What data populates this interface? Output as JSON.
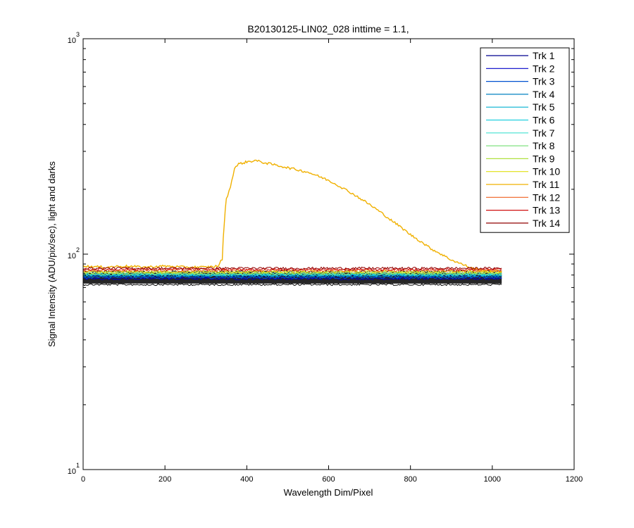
{
  "chart_data": {
    "type": "line",
    "title": "B20130125-LIN02_028 inttime = 1.1,",
    "xlabel": "Wavelength Dim/Pixel",
    "ylabel": "Signal Intensity (ADU/pix/sec), light and darks",
    "xlim": [
      0,
      1200
    ],
    "ylim": [
      10,
      1000
    ],
    "yscale": "log",
    "x_ticks": [
      0,
      200,
      400,
      600,
      800,
      1000,
      1200
    ],
    "y_ticks": [
      {
        "base": "10",
        "exp": "1",
        "value": 10
      },
      {
        "base": "10",
        "exp": "2",
        "value": 100
      },
      {
        "base": "10",
        "exp": "3",
        "value": 1000
      }
    ],
    "grid": false,
    "legend_position": "top-right",
    "dark_band": {
      "x_range": [
        0,
        1023
      ],
      "y_min": 73,
      "y_max": 82,
      "color": "#000000"
    },
    "series": [
      {
        "name": "Trk 1",
        "color": "#00008F",
        "x": [
          0,
          1023
        ],
        "y": [
          79,
          79
        ]
      },
      {
        "name": "Trk 2",
        "color": "#0000C8",
        "x": [
          0,
          1023
        ],
        "y": [
          77,
          77
        ]
      },
      {
        "name": "Trk 3",
        "color": "#0050D0",
        "x": [
          0,
          1023
        ],
        "y": [
          78,
          78
        ]
      },
      {
        "name": "Trk 4",
        "color": "#0080C0",
        "x": [
          0,
          1023
        ],
        "y": [
          79,
          79
        ]
      },
      {
        "name": "Trk 5",
        "color": "#00B0D0",
        "x": [
          0,
          1023
        ],
        "y": [
          80,
          80
        ]
      },
      {
        "name": "Trk 6",
        "color": "#20D0E0",
        "x": [
          0,
          1023
        ],
        "y": [
          80,
          80
        ]
      },
      {
        "name": "Trk 7",
        "color": "#40E0D0",
        "x": [
          0,
          1023
        ],
        "y": [
          81,
          81
        ]
      },
      {
        "name": "Trk 8",
        "color": "#80E080",
        "x": [
          0,
          1023
        ],
        "y": [
          81,
          81
        ]
      },
      {
        "name": "Trk 9",
        "color": "#B0E040",
        "x": [
          0,
          1023
        ],
        "y": [
          82,
          82
        ]
      },
      {
        "name": "Trk 10",
        "color": "#E0E010",
        "x": [
          0,
          1023
        ],
        "y": [
          83,
          83
        ]
      },
      {
        "name": "Trk 11",
        "color": "#F0B000",
        "x": [
          0,
          50,
          100,
          150,
          200,
          250,
          300,
          330,
          340,
          345,
          350,
          360,
          370,
          380,
          400,
          420,
          450,
          500,
          550,
          600,
          650,
          700,
          750,
          800,
          850,
          900,
          950,
          980,
          1023
        ],
        "y": [
          88,
          87,
          88,
          87,
          88,
          87,
          87,
          88,
          95,
          140,
          180,
          205,
          250,
          262,
          268,
          272,
          264,
          252,
          240,
          220,
          195,
          170,
          145,
          123,
          106,
          94,
          86,
          84,
          83
        ]
      },
      {
        "name": "Trk 12",
        "color": "#F06020",
        "x": [
          0,
          1023
        ],
        "y": [
          84,
          84
        ]
      },
      {
        "name": "Trk 13",
        "color": "#D01010",
        "x": [
          0,
          1023
        ],
        "y": [
          85,
          85
        ]
      },
      {
        "name": "Trk 14",
        "color": "#900000",
        "x": [
          0,
          1023
        ],
        "y": [
          86,
          86
        ]
      }
    ]
  }
}
